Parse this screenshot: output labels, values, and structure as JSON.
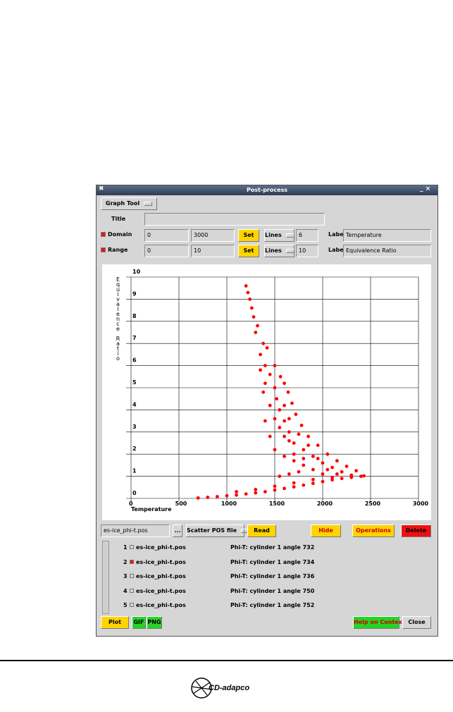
{
  "window": {
    "title": "Post-process"
  },
  "toolbar": {
    "mode": "Graph Tool",
    "title_label": "Title"
  },
  "domain": {
    "checked": true,
    "label": "Domain",
    "min": "0",
    "max": "3000",
    "set": "Set",
    "lines_menu": "Lines",
    "lines": "6",
    "label_label": "Label",
    "label_value": "Temperature"
  },
  "range": {
    "checked": true,
    "label": "Range",
    "min": "0",
    "max": "10",
    "set": "Set",
    "lines_menu": "Lines",
    "lines": "10",
    "label_label": "Label",
    "label_value": "Equivalence Ratio"
  },
  "chart_data": {
    "type": "scatter",
    "x_label": "Temperature",
    "y_label": "Equivalence Ratio",
    "xlim": [
      0,
      3000
    ],
    "ylim": [
      0,
      10
    ],
    "xticks": [
      0,
      500,
      1000,
      1500,
      2000,
      2500,
      3000
    ],
    "yticks": [
      0,
      1,
      2,
      3,
      4,
      5,
      6,
      7,
      8,
      9,
      10
    ],
    "grid": true,
    "color": "#ff0000",
    "x": [
      700,
      800,
      900,
      1000,
      1100,
      1200,
      1300,
      1400,
      1500,
      1600,
      1700,
      1800,
      1900,
      2000,
      2100,
      2200,
      2300,
      2400,
      2430,
      1100,
      1300,
      1500,
      1700,
      1900,
      2100,
      2300,
      2350,
      2250,
      2150,
      2050,
      1950,
      1850,
      1780,
      1720,
      1680,
      1640,
      1600,
      1560,
      2200,
      2100,
      2000,
      1900,
      1800,
      1700,
      1650,
      1600,
      1550,
      1520,
      1500,
      2000,
      1900,
      1800,
      1700,
      1600,
      1700,
      1800,
      1650,
      1750,
      1600,
      1550,
      1500,
      1450,
      1600,
      1650,
      1850,
      1950,
      2050,
      2150,
      1750,
      1650,
      1550,
      1500,
      1450,
      1400,
      1400,
      1450,
      1350,
      1380,
      1300,
      1320,
      1280,
      1260,
      1240,
      1220,
      1200,
      1350,
      1420,
      1500,
      1400,
      1380
    ],
    "y": [
      0.02,
      0.05,
      0.08,
      0.12,
      0.15,
      0.2,
      0.25,
      0.3,
      0.38,
      0.45,
      0.52,
      0.6,
      0.68,
      0.76,
      0.84,
      0.9,
      0.95,
      1.0,
      1.02,
      0.3,
      0.4,
      0.55,
      0.7,
      0.85,
      0.95,
      1.05,
      1.25,
      1.45,
      1.7,
      2.0,
      2.4,
      2.8,
      3.3,
      3.8,
      4.3,
      4.8,
      5.2,
      5.5,
      1.2,
      1.4,
      1.6,
      1.9,
      2.2,
      2.5,
      3.0,
      3.5,
      4.0,
      4.5,
      5.0,
      1.1,
      1.3,
      1.5,
      1.7,
      1.9,
      2.0,
      1.8,
      2.6,
      2.9,
      2.8,
      3.2,
      3.6,
      4.2,
      4.2,
      3.6,
      2.4,
      1.8,
      1.3,
      1.1,
      1.2,
      1.1,
      1.0,
      2.2,
      2.8,
      3.5,
      6.0,
      5.6,
      6.5,
      7.0,
      7.5,
      7.8,
      8.2,
      8.6,
      9.0,
      9.3,
      9.6,
      5.8,
      6.8,
      6.0,
      5.2,
      4.8
    ]
  },
  "file": {
    "path": "es-ice_phi-t.pos",
    "browse": "...",
    "format_menu": "Scatter POS file",
    "read": "Read",
    "hide": "Hide",
    "operations": "Operations",
    "delete": "Delete"
  },
  "list": {
    "items": [
      {
        "index": 1,
        "checked": false,
        "file": "es-ice_phi-t.pos",
        "description": "Phi-T: cylinder 1 angle 732"
      },
      {
        "index": 2,
        "checked": true,
        "file": "es-ice_phi-t.pos",
        "description": "Phi-T: cylinder 1 angle 734"
      },
      {
        "index": 3,
        "checked": false,
        "file": "es-ice_phi-t.pos",
        "description": "Phi-T: cylinder 1 angle 736"
      },
      {
        "index": 4,
        "checked": false,
        "file": "es-ice_phi-t.pos",
        "description": "Phi-T: cylinder 1 angle 750"
      },
      {
        "index": 5,
        "checked": false,
        "file": "es-ice_phi-t.pos",
        "description": "Phi-T: cylinder 1 angle 752"
      }
    ]
  },
  "actions": {
    "plot": "Plot",
    "gif": "GIF",
    "png": "PNG",
    "help": "Help on Context",
    "close": "Close"
  },
  "footer": {
    "logo": "CD-adapco"
  }
}
